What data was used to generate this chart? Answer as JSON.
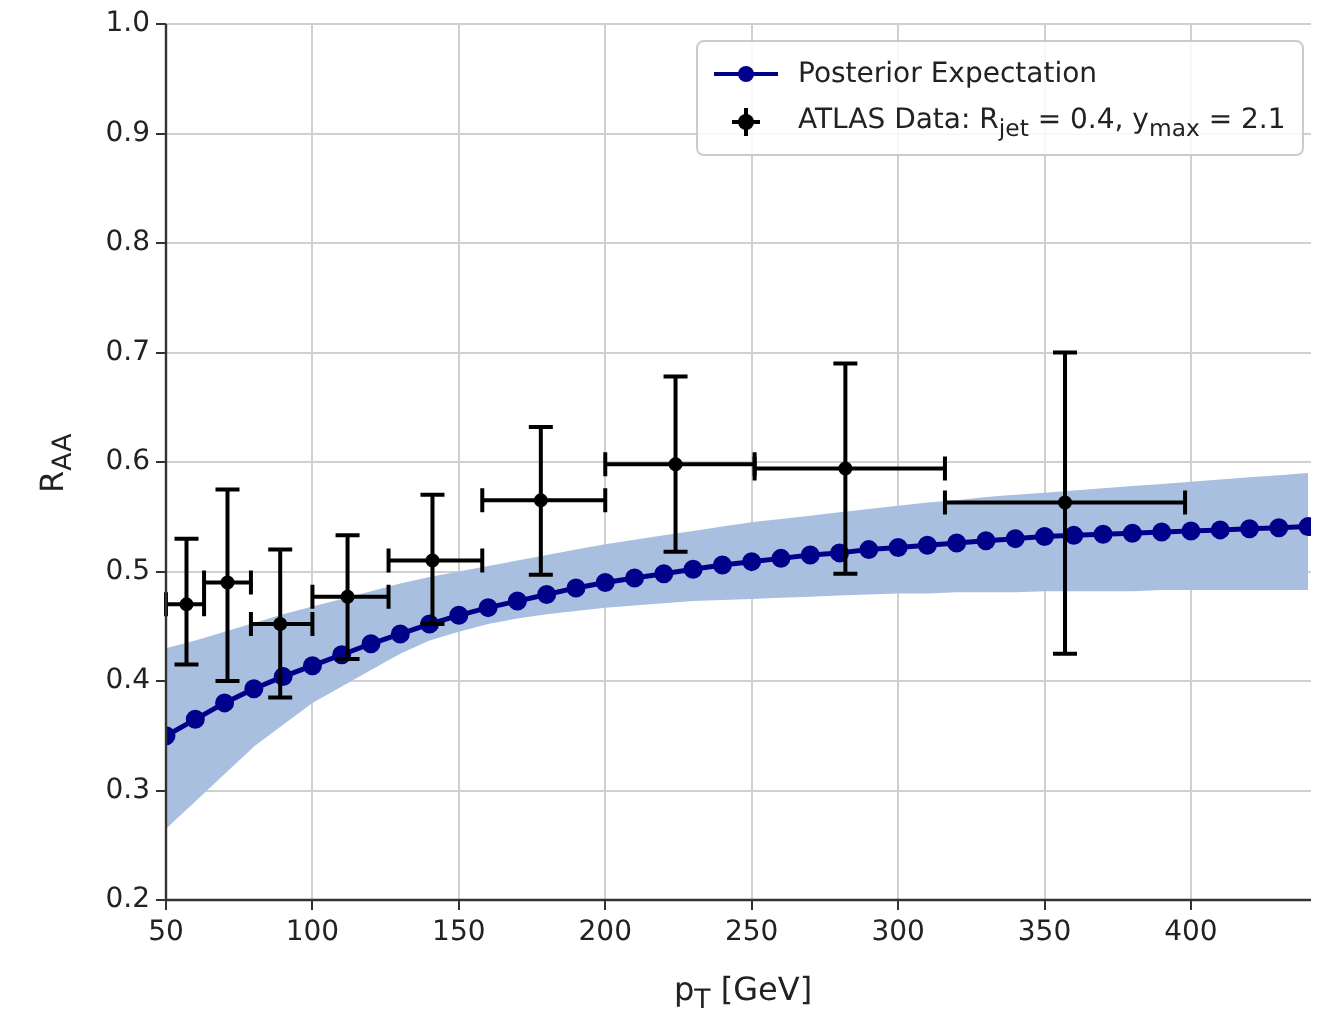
{
  "chart_data": {
    "type": "line",
    "xlabel": "p$_{T}$ [GeV]",
    "ylabel": "R$_{AA}$",
    "xlim": [
      50,
      441
    ],
    "xticks": [
      50,
      100,
      150,
      200,
      250,
      300,
      350,
      400
    ],
    "ylim": [
      0.2,
      1.0
    ],
    "yticks": [
      {
        "value": 0.2,
        "label": "0.2"
      },
      {
        "value": 0.3,
        "label": "0.3"
      },
      {
        "value": 0.4,
        "label": "0.4"
      },
      {
        "value": 0.5,
        "label": "0.5"
      },
      {
        "value": 0.6,
        "label": "0.6"
      },
      {
        "value": 0.7,
        "label": "0.7"
      },
      {
        "value": 0.8,
        "label": "0.8"
      },
      {
        "value": 0.9,
        "label": "0.9"
      },
      {
        "value": 1.0,
        "label": "1.0"
      }
    ],
    "grid": true,
    "legend": "top right",
    "series": [
      {
        "type": "line",
        "name": "Posterior Expectation",
        "color": "#00008b",
        "marker": "circle",
        "line_style": "solid",
        "x": [
          50,
          60,
          70,
          80,
          90,
          100,
          110,
          120,
          130,
          140,
          150,
          160,
          170,
          180,
          190,
          200,
          210,
          220,
          230,
          240,
          250,
          260,
          270,
          280,
          290,
          300,
          310,
          320,
          330,
          340,
          350,
          360,
          370,
          380,
          390,
          400,
          410,
          420,
          430,
          440
        ],
        "values": [
          0.35,
          0.365,
          0.38,
          0.393,
          0.404,
          0.414,
          0.424,
          0.434,
          0.443,
          0.452,
          0.46,
          0.467,
          0.473,
          0.479,
          0.485,
          0.49,
          0.494,
          0.498,
          0.502,
          0.506,
          0.509,
          0.512,
          0.515,
          0.517,
          0.52,
          0.522,
          0.524,
          0.526,
          0.528,
          0.53,
          0.532,
          0.533,
          0.534,
          0.535,
          0.536,
          0.537,
          0.538,
          0.539,
          0.54,
          0.541
        ],
        "lower": [
          0.265,
          0.29,
          0.315,
          0.34,
          0.36,
          0.38,
          0.395,
          0.41,
          0.425,
          0.437,
          0.445,
          0.452,
          0.457,
          0.461,
          0.464,
          0.467,
          0.469,
          0.471,
          0.473,
          0.474,
          0.475,
          0.476,
          0.477,
          0.478,
          0.479,
          0.48,
          0.48,
          0.481,
          0.481,
          0.481,
          0.482,
          0.482,
          0.482,
          0.482,
          0.483,
          0.483,
          0.483,
          0.483,
          0.483,
          0.483
        ],
        "upper": [
          0.43,
          0.437,
          0.445,
          0.453,
          0.461,
          0.468,
          0.475,
          0.482,
          0.489,
          0.495,
          0.5,
          0.505,
          0.51,
          0.515,
          0.52,
          0.525,
          0.529,
          0.533,
          0.537,
          0.541,
          0.545,
          0.548,
          0.551,
          0.554,
          0.557,
          0.56,
          0.563,
          0.565,
          0.568,
          0.57,
          0.572,
          0.574,
          0.576,
          0.578,
          0.58,
          0.582,
          0.584,
          0.586,
          0.588,
          0.59
        ]
      },
      {
        "type": "scatter",
        "name": "ATLAS Data: R$_{jet}$ = 0.4, y$_{max}$ = 2.1",
        "color": "#000000",
        "marker": "circle",
        "x": [
          57,
          71,
          89,
          112,
          141,
          178,
          224,
          282,
          357
        ],
        "values": [
          0.47,
          0.49,
          0.452,
          0.477,
          0.51,
          0.565,
          0.598,
          0.594,
          0.563
        ],
        "errors": [
          [
            0.415,
            0.53
          ],
          [
            0.4,
            0.575
          ],
          [
            0.385,
            0.52
          ],
          [
            0.42,
            0.533
          ],
          [
            0.452,
            0.57
          ],
          [
            0.497,
            0.632
          ],
          [
            0.518,
            0.678
          ],
          [
            0.498,
            0.69
          ],
          [
            0.425,
            0.7
          ]
        ],
        "xerrors": [
          [
            50,
            63
          ],
          [
            63,
            79
          ],
          [
            79,
            100
          ],
          [
            100,
            126
          ],
          [
            126,
            158
          ],
          [
            158,
            200
          ],
          [
            200,
            251
          ],
          [
            251,
            316
          ],
          [
            316,
            398
          ]
        ]
      }
    ]
  }
}
